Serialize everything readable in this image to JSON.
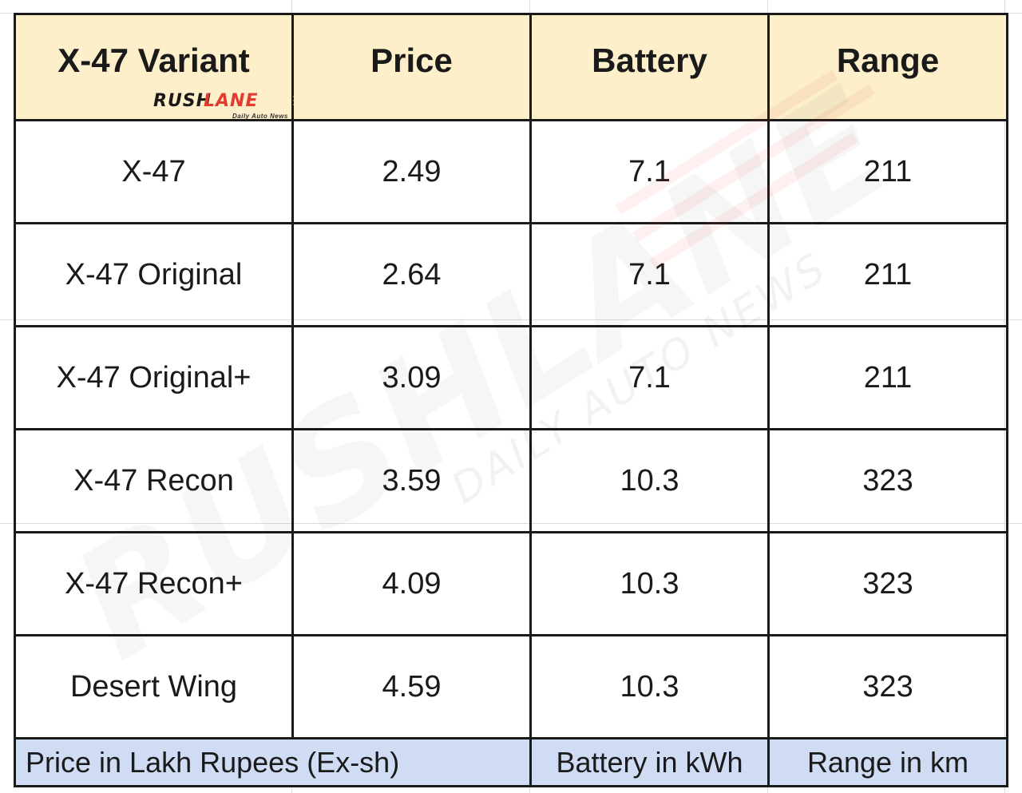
{
  "table": {
    "headers": [
      "X-47 Variant",
      "Price",
      "Battery",
      "Range"
    ],
    "rows": [
      [
        "X-47",
        "2.49",
        "7.1",
        "211"
      ],
      [
        "X-47 Original",
        "2.64",
        "7.1",
        "211"
      ],
      [
        "X-47 Original+",
        "3.09",
        "7.1",
        "211"
      ],
      [
        "X-47 Recon",
        "3.59",
        "10.3",
        "323"
      ],
      [
        "X-47 Recon+",
        "4.09",
        "10.3",
        "323"
      ],
      [
        "Desert Wing",
        "4.59",
        "10.3",
        "323"
      ]
    ],
    "footer": {
      "price_note": "Price in Lakh Rupees (Ex-sh)",
      "battery_note": "Battery in kWh",
      "range_note": "Range in km"
    }
  },
  "logo": {
    "word_part1": "RUSH",
    "word_part2": "LANE",
    "tagline": "Daily Auto News",
    "accent_color": "#e23b2f"
  },
  "watermark": {
    "word": "RUSHLANE",
    "tagline": "DAILY AUTO NEWS"
  },
  "colors": {
    "header_bg": "#fcefca",
    "footer_bg": "#cfdcf3",
    "border": "#1a1a1a"
  }
}
